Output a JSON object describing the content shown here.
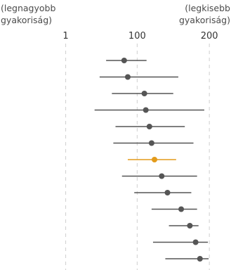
{
  "chart_data": {
    "type": "dot-and-interval",
    "corner_labels": {
      "left": [
        "(legnagyobb",
        "gyakoriság)"
      ],
      "right": [
        "(legkisebb",
        "gyakoriság)"
      ]
    },
    "x_ticks": [
      {
        "value": 1,
        "label": "1"
      },
      {
        "value": 100,
        "label": "100"
      },
      {
        "value": 200,
        "label": "200"
      }
    ],
    "xlim": [
      -90,
      230
    ],
    "colors": {
      "default": "#555555",
      "highlight": "#e39b1b",
      "grid": "#cfcfcf"
    },
    "rows": [
      {
        "estimate": 82,
        "low": 57,
        "high": 113,
        "highlight": false
      },
      {
        "estimate": 87,
        "low": 48,
        "high": 157,
        "highlight": false
      },
      {
        "estimate": 110,
        "low": 65,
        "high": 150,
        "highlight": false
      },
      {
        "estimate": 112,
        "low": 41,
        "high": 193,
        "highlight": false
      },
      {
        "estimate": 117,
        "low": 70,
        "high": 166,
        "highlight": false
      },
      {
        "estimate": 120,
        "low": 67,
        "high": 178,
        "highlight": false
      },
      {
        "estimate": 124,
        "low": 87,
        "high": 154,
        "highlight": true
      },
      {
        "estimate": 134,
        "low": 79,
        "high": 183,
        "highlight": false
      },
      {
        "estimate": 142,
        "low": 96,
        "high": 175,
        "highlight": false
      },
      {
        "estimate": 161,
        "low": 120,
        "high": 183,
        "highlight": false
      },
      {
        "estimate": 173,
        "low": 144,
        "high": 185,
        "highlight": false
      },
      {
        "estimate": 181,
        "low": 122,
        "high": 198,
        "highlight": false
      },
      {
        "estimate": 187,
        "low": 139,
        "high": 199,
        "highlight": false
      }
    ]
  }
}
